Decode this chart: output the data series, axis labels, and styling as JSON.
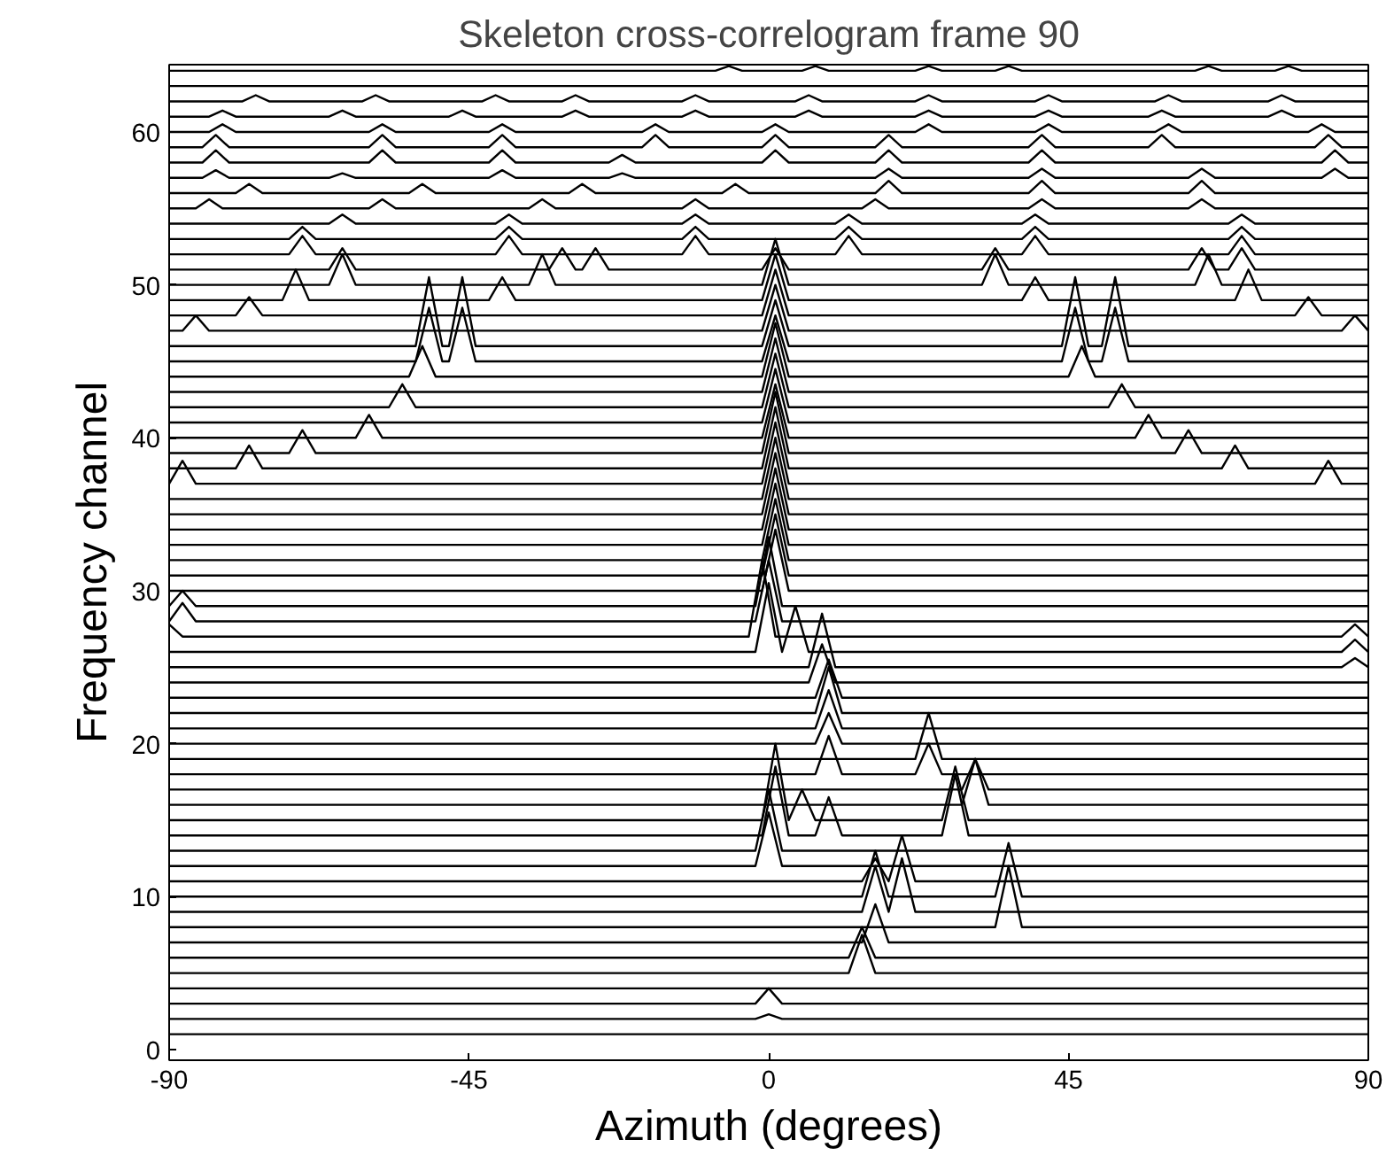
{
  "chart_data": {
    "type": "line",
    "title": "Skeleton cross-correlogram frame 90",
    "xlabel": "Azimuth (degrees)",
    "ylabel": "Frequency channel",
    "xlim": [
      -90,
      90
    ],
    "xticks": [
      -90,
      -45,
      0,
      45,
      90
    ],
    "ylim": [
      -0.7,
      64.4
    ],
    "yticks": [
      0,
      10,
      20,
      30,
      40,
      50,
      60
    ],
    "grid": false,
    "marker": "none",
    "line_style": "solid",
    "series": [
      {
        "color": "#000000",
        "x": [
          -90,
          90
        ],
        "values": [
          1,
          1
        ]
      },
      {
        "color": "#000000",
        "x": [
          -90,
          -2,
          0,
          2,
          90
        ],
        "values": [
          2,
          2,
          2.3,
          2,
          2
        ]
      },
      {
        "color": "#000000",
        "x": [
          -90,
          -2,
          0,
          2,
          90
        ],
        "values": [
          3,
          3,
          4,
          3,
          3
        ]
      },
      {
        "color": "#000000",
        "x": [
          -90,
          90
        ],
        "values": [
          4,
          4
        ]
      },
      {
        "color": "#000000",
        "x": [
          -90,
          12,
          14,
          16,
          90
        ],
        "values": [
          5,
          5,
          7.5,
          5,
          5
        ]
      },
      {
        "color": "#000000",
        "x": [
          -90,
          12,
          14,
          16,
          90
        ],
        "values": [
          6,
          6,
          8,
          6,
          6
        ]
      },
      {
        "color": "#000000",
        "x": [
          -90,
          14,
          16,
          18,
          90
        ],
        "values": [
          7,
          7,
          9.5,
          7,
          7
        ]
      },
      {
        "color": "#000000",
        "x": [
          -90,
          34,
          36,
          38,
          90
        ],
        "values": [
          8,
          8,
          12,
          8,
          8
        ]
      },
      {
        "color": "#000000",
        "x": [
          -90,
          14,
          16,
          18,
          20,
          22,
          90
        ],
        "values": [
          9,
          9,
          12,
          9,
          12.5,
          9,
          9
        ]
      },
      {
        "color": "#000000",
        "x": [
          -90,
          14,
          16,
          18,
          34,
          36,
          38,
          90
        ],
        "values": [
          10,
          10,
          13,
          10,
          10,
          13.5,
          10,
          10
        ]
      },
      {
        "color": "#000000",
        "x": [
          -90,
          14,
          16,
          18,
          20,
          22,
          90
        ],
        "values": [
          11,
          11,
          12.5,
          11,
          14,
          11,
          11
        ]
      },
      {
        "color": "#000000",
        "x": [
          -90,
          -2,
          0,
          2,
          90
        ],
        "values": [
          12,
          12,
          15.5,
          12,
          12
        ]
      },
      {
        "color": "#000000",
        "x": [
          -90,
          -2,
          0,
          2,
          90
        ],
        "values": [
          13,
          13,
          17,
          13,
          13
        ]
      },
      {
        "color": "#000000",
        "x": [
          -90,
          -1,
          1,
          3,
          7,
          9,
          11,
          26,
          28,
          30,
          90
        ],
        "values": [
          14,
          14,
          18.5,
          14,
          14,
          16.5,
          14,
          14,
          18,
          14,
          14
        ]
      },
      {
        "color": "#000000",
        "x": [
          -90,
          -1,
          1,
          3,
          5,
          7,
          26,
          28,
          30,
          90
        ],
        "values": [
          15,
          15,
          20,
          15,
          17,
          15,
          15,
          18.5,
          15,
          15
        ]
      },
      {
        "color": "#000000",
        "x": [
          -90,
          29,
          31,
          33,
          90
        ],
        "values": [
          16,
          16,
          19,
          16,
          16
        ]
      },
      {
        "color": "#000000",
        "x": [
          -90,
          29,
          31,
          33,
          90
        ],
        "values": [
          17,
          17,
          19,
          17,
          17
        ]
      },
      {
        "color": "#000000",
        "x": [
          -90,
          7,
          9,
          11,
          22,
          24,
          26,
          90
        ],
        "values": [
          18,
          18,
          20.5,
          18,
          18,
          20,
          18,
          18
        ]
      },
      {
        "color": "#000000",
        "x": [
          -90,
          22,
          24,
          26,
          90
        ],
        "values": [
          19,
          19,
          22,
          19,
          19
        ]
      },
      {
        "color": "#000000",
        "x": [
          -90,
          7,
          9,
          11,
          90
        ],
        "values": [
          20,
          20,
          22,
          20,
          20
        ]
      },
      {
        "color": "#000000",
        "x": [
          -90,
          7,
          9,
          11,
          90
        ],
        "values": [
          21,
          21,
          23.5,
          21,
          21
        ]
      },
      {
        "color": "#000000",
        "x": [
          -90,
          7,
          9,
          11,
          90
        ],
        "values": [
          22,
          22,
          25,
          22,
          22
        ]
      },
      {
        "color": "#000000",
        "x": [
          -90,
          7,
          9,
          11,
          90
        ],
        "values": [
          23,
          23,
          25.5,
          23,
          23
        ]
      },
      {
        "color": "#000000",
        "x": [
          -90,
          6,
          8,
          10,
          90
        ],
        "values": [
          24,
          24,
          26.5,
          24,
          24
        ]
      },
      {
        "color": "#000000",
        "x": [
          -90,
          6,
          8,
          10,
          86,
          88,
          90
        ],
        "values": [
          25,
          25,
          28.5,
          25,
          25,
          25.6,
          25
        ]
      },
      {
        "color": "#000000",
        "x": [
          -90,
          -2,
          0,
          2,
          4,
          6,
          86,
          88,
          90
        ],
        "values": [
          26,
          26,
          30.5,
          26,
          29,
          26,
          26,
          26.8,
          26
        ]
      },
      {
        "color": "#000000",
        "x": [
          -90,
          -88,
          -86,
          -3,
          -1,
          1,
          86,
          88,
          90
        ],
        "values": [
          27.8,
          27,
          27,
          27,
          32,
          27,
          27,
          27.8,
          27
        ]
      },
      {
        "color": "#000000",
        "x": [
          -90,
          -88,
          -86,
          -2,
          0,
          2,
          90
        ],
        "values": [
          28,
          29.2,
          28,
          28,
          32,
          28,
          28
        ]
      },
      {
        "color": "#000000",
        "x": [
          -90,
          -88,
          -86,
          -2,
          0,
          2,
          90
        ],
        "values": [
          29,
          30,
          29,
          29,
          33.5,
          29,
          29
        ]
      },
      {
        "color": "#000000",
        "x": [
          -90,
          -1,
          1,
          3,
          90
        ],
        "values": [
          30,
          30,
          34,
          30,
          30
        ]
      },
      {
        "color": "#000000",
        "x": [
          -90,
          -1,
          1,
          3,
          90
        ],
        "values": [
          31,
          31,
          35,
          31,
          31
        ]
      },
      {
        "color": "#000000",
        "x": [
          -90,
          -1,
          1,
          3,
          90
        ],
        "values": [
          32,
          32,
          36,
          32,
          32
        ]
      },
      {
        "color": "#000000",
        "x": [
          -90,
          -1,
          1,
          3,
          90
        ],
        "values": [
          33,
          33,
          37,
          33,
          33
        ]
      },
      {
        "color": "#000000",
        "x": [
          -90,
          -1,
          1,
          3,
          90
        ],
        "values": [
          34,
          34,
          38,
          34,
          34
        ]
      },
      {
        "color": "#000000",
        "x": [
          -90,
          -1,
          1,
          3,
          90
        ],
        "values": [
          35,
          35,
          39,
          35,
          35
        ]
      },
      {
        "color": "#000000",
        "x": [
          -90,
          -1,
          1,
          3,
          90
        ],
        "values": [
          36,
          36,
          40,
          36,
          36
        ]
      },
      {
        "color": "#000000",
        "x": [
          -90,
          -88,
          -86,
          -1,
          1,
          3,
          82,
          84,
          86,
          90
        ],
        "values": [
          37,
          38.5,
          37,
          37,
          41,
          37,
          37,
          38.5,
          37,
          37
        ]
      },
      {
        "color": "#000000",
        "x": [
          -90,
          -80,
          -78,
          -76,
          -1,
          1,
          3,
          68,
          70,
          72,
          90
        ],
        "values": [
          38,
          38,
          39.5,
          38,
          38,
          42,
          38,
          38,
          39.5,
          38,
          38
        ]
      },
      {
        "color": "#000000",
        "x": [
          -90,
          -72,
          -70,
          -68,
          -1,
          1,
          3,
          61,
          63,
          65,
          90
        ],
        "values": [
          39,
          39,
          40.5,
          39,
          39,
          43,
          39,
          39,
          40.5,
          39,
          39
        ]
      },
      {
        "color": "#000000",
        "x": [
          -90,
          -62,
          -60,
          -58,
          -1,
          1,
          3,
          55,
          57,
          59,
          90
        ],
        "values": [
          40,
          40,
          41.5,
          40,
          40,
          43.5,
          40,
          40,
          41.5,
          40,
          40
        ]
      },
      {
        "color": "#000000",
        "x": [
          -90,
          -1,
          1,
          3,
          90
        ],
        "values": [
          41,
          41,
          44.5,
          41,
          41
        ]
      },
      {
        "color": "#000000",
        "x": [
          -90,
          -57,
          -55,
          -53,
          -1,
          1,
          3,
          51,
          53,
          55,
          90
        ],
        "values": [
          42,
          42,
          43.5,
          42,
          42,
          45.5,
          42,
          42,
          43.5,
          42,
          42
        ]
      },
      {
        "color": "#000000",
        "x": [
          -90,
          -1,
          1,
          3,
          90
        ],
        "values": [
          43,
          43,
          46.5,
          43,
          43
        ]
      },
      {
        "color": "#000000",
        "x": [
          -90,
          -54,
          -52,
          -50,
          -1,
          1,
          3,
          45,
          47,
          49,
          90
        ],
        "values": [
          44,
          44,
          46,
          44,
          44,
          47.5,
          44,
          44,
          46,
          44,
          44
        ]
      },
      {
        "color": "#000000",
        "x": [
          -90,
          -53,
          -51,
          -49,
          -48,
          -46,
          -44,
          -1,
          1,
          3,
          44,
          46,
          48,
          50,
          52,
          54,
          90
        ],
        "values": [
          45,
          45,
          48.5,
          45,
          45,
          48.5,
          45,
          45,
          48,
          45,
          45,
          48.5,
          45,
          45,
          48.5,
          45,
          45
        ]
      },
      {
        "color": "#000000",
        "x": [
          -90,
          -53,
          -51,
          -49,
          -48,
          -46,
          -44,
          -1,
          1,
          3,
          44,
          46,
          48,
          50,
          52,
          54,
          90
        ],
        "values": [
          46,
          46,
          50.5,
          46,
          46,
          50.5,
          46,
          46,
          49,
          46,
          46,
          50.5,
          46,
          46,
          50.5,
          46,
          46
        ]
      },
      {
        "color": "#000000",
        "x": [
          -90,
          -88,
          -86,
          -84,
          -1,
          1,
          3,
          86,
          88,
          90
        ],
        "values": [
          47,
          47,
          48,
          47,
          47,
          50,
          47,
          47,
          48,
          47
        ]
      },
      {
        "color": "#000000",
        "x": [
          -90,
          -80,
          -78,
          -76,
          -1,
          1,
          3,
          79,
          81,
          83,
          90
        ],
        "values": [
          48,
          48,
          49.2,
          48,
          48,
          51,
          48,
          48,
          49.2,
          48,
          48
        ]
      },
      {
        "color": "#000000",
        "x": [
          -90,
          -73,
          -71,
          -69,
          -42,
          -40,
          -38,
          -1,
          1,
          3,
          38,
          40,
          42,
          70,
          72,
          74,
          90
        ],
        "values": [
          49,
          49,
          51,
          49,
          49,
          50.5,
          49,
          49,
          52,
          49,
          49,
          50.5,
          49,
          49,
          51,
          49,
          49
        ]
      },
      {
        "color": "#000000",
        "x": [
          -90,
          -66,
          -64,
          -62,
          -36,
          -34,
          -32,
          -1,
          1,
          3,
          32,
          34,
          36,
          64,
          66,
          68,
          90
        ],
        "values": [
          50,
          50,
          52,
          50,
          50,
          52,
          50,
          50,
          53,
          50,
          50,
          52,
          50,
          50,
          52,
          50,
          50
        ]
      },
      {
        "color": "#000000",
        "x": [
          -90,
          -66,
          -64,
          -62,
          -33,
          -31,
          -29,
          -28,
          -26,
          -24,
          -1,
          1,
          3,
          32,
          34,
          36,
          63,
          65,
          67,
          69,
          71,
          73,
          90
        ],
        "values": [
          51,
          51,
          52.4,
          51,
          51,
          52.4,
          51,
          51,
          52.4,
          51,
          51,
          52.4,
          51,
          51,
          52.4,
          51,
          51,
          52.4,
          51,
          51,
          52.4,
          51,
          51
        ]
      },
      {
        "color": "#000000",
        "x": [
          -90,
          -72,
          -70,
          -68,
          -41,
          -39,
          -37,
          -13,
          -11,
          -9,
          10,
          12,
          14,
          38,
          40,
          42,
          69,
          71,
          73,
          90
        ],
        "values": [
          52,
          52,
          53.2,
          52,
          52,
          53.2,
          52,
          52,
          53.2,
          52,
          52,
          53.2,
          52,
          52,
          53.2,
          52,
          52,
          53.2,
          52,
          52
        ]
      },
      {
        "color": "#000000",
        "x": [
          -90,
          -72,
          -70,
          -68,
          -41,
          -39,
          -37,
          -13,
          -11,
          -9,
          10,
          12,
          14,
          38,
          40,
          42,
          69,
          71,
          73,
          90
        ],
        "values": [
          53,
          53,
          53.8,
          53,
          53,
          53.8,
          53,
          53,
          53.8,
          53,
          53,
          53.8,
          53,
          53,
          53.8,
          53,
          53,
          53.8,
          53,
          53
        ]
      },
      {
        "color": "#000000",
        "x": [
          -90,
          -66,
          -64,
          -62,
          -41,
          -39,
          -37,
          -13,
          -11,
          -9,
          10,
          12,
          14,
          38,
          40,
          42,
          69,
          71,
          73,
          90
        ],
        "values": [
          54,
          54,
          54.6,
          54,
          54,
          54.6,
          54,
          54,
          54.6,
          54,
          54,
          54.6,
          54,
          54,
          54.6,
          54,
          54,
          54.6,
          54,
          54
        ]
      },
      {
        "color": "#000000",
        "x": [
          -90,
          -86,
          -84,
          -82,
          -60,
          -58,
          -56,
          -36,
          -34,
          -32,
          -13,
          -11,
          -9,
          14,
          16,
          18,
          39,
          41,
          43,
          63,
          65,
          67,
          90
        ],
        "values": [
          55,
          55,
          55.6,
          55,
          55,
          55.6,
          55,
          55,
          55.6,
          55,
          55,
          55.6,
          55,
          55,
          55.6,
          55,
          55,
          55.6,
          55,
          55,
          55.6,
          55,
          55
        ]
      },
      {
        "color": "#000000",
        "x": [
          -90,
          -80,
          -78,
          -76,
          -54,
          -52,
          -50,
          -30,
          -28,
          -26,
          -7,
          -5,
          -3,
          16,
          18,
          20,
          39,
          41,
          43,
          63,
          65,
          67,
          90
        ],
        "values": [
          56,
          56,
          56.6,
          56,
          56,
          56.6,
          56,
          56,
          56.6,
          56,
          56,
          56.6,
          56,
          56,
          56.8,
          56,
          56,
          56.8,
          56,
          56,
          56.8,
          56,
          56
        ]
      },
      {
        "color": "#000000",
        "x": [
          -90,
          -85,
          -83,
          -81,
          -66,
          -64,
          -62,
          -42,
          -40,
          -38,
          -24,
          -22,
          -20,
          16,
          18,
          20,
          39,
          41,
          43,
          63,
          65,
          67,
          83,
          85,
          87,
          90
        ],
        "values": [
          57,
          57,
          57.5,
          57,
          57,
          57.3,
          57,
          57,
          57.5,
          57,
          57,
          57.3,
          57,
          57,
          57.6,
          57,
          57,
          57.6,
          57,
          57,
          57.6,
          57,
          57,
          57.6,
          57,
          57
        ]
      },
      {
        "color": "#000000",
        "x": [
          -90,
          -85,
          -83,
          -81,
          -60,
          -58,
          -56,
          -42,
          -40,
          -38,
          -24,
          -22,
          -20,
          -1,
          1,
          3,
          16,
          18,
          20,
          39,
          41,
          43,
          83,
          85,
          87,
          90
        ],
        "values": [
          58,
          58,
          58.8,
          58,
          58,
          58.8,
          58,
          58,
          58.8,
          58,
          58,
          58.5,
          58,
          58,
          58.8,
          58,
          58,
          58.8,
          58,
          58,
          58.8,
          58,
          58,
          58.8,
          58,
          58
        ]
      },
      {
        "color": "#000000",
        "x": [
          -90,
          -85,
          -83,
          -81,
          -60,
          -58,
          -56,
          -42,
          -40,
          -38,
          -19,
          -17,
          -15,
          -1,
          1,
          3,
          16,
          18,
          20,
          39,
          41,
          43,
          57,
          59,
          61,
          82,
          84,
          86,
          90
        ],
        "values": [
          59,
          59,
          59.8,
          59,
          59,
          59.8,
          59,
          59,
          59.8,
          59,
          59,
          59.8,
          59,
          59,
          59.8,
          59,
          59,
          59.8,
          59,
          59,
          59.8,
          59,
          59,
          59.8,
          59,
          59,
          59.8,
          59,
          59
        ]
      },
      {
        "color": "#000000",
        "x": [
          -90,
          -84,
          -82,
          -80,
          -60,
          -58,
          -56,
          -42,
          -40,
          -38,
          -19,
          -17,
          -15,
          -1,
          1,
          3,
          22,
          24,
          26,
          40,
          42,
          44,
          58,
          60,
          62,
          81,
          83,
          85,
          90
        ],
        "values": [
          60,
          60,
          60.5,
          60,
          60,
          60.5,
          60,
          60,
          60.5,
          60,
          60,
          60.5,
          60,
          60,
          60.5,
          60,
          60,
          60.5,
          60,
          60,
          60.5,
          60,
          60,
          60.5,
          60,
          60,
          60.5,
          60,
          60
        ]
      },
      {
        "color": "#000000",
        "x": [
          -90,
          -84,
          -82,
          -80,
          -66,
          -64,
          -62,
          -48,
          -46,
          -44,
          -31,
          -29,
          -27,
          -13,
          -11,
          -9,
          4,
          6,
          8,
          22,
          24,
          26,
          40,
          42,
          44,
          57,
          59,
          61,
          75,
          77,
          79,
          90
        ],
        "values": [
          61,
          61,
          61.4,
          61,
          61,
          61.4,
          61,
          61,
          61.4,
          61,
          61,
          61.4,
          61,
          61,
          61.4,
          61,
          61,
          61.4,
          61,
          61,
          61.4,
          61,
          61,
          61.4,
          61,
          61,
          61.4,
          61,
          61,
          61.4,
          61,
          61
        ]
      },
      {
        "color": "#000000",
        "x": [
          -90,
          -79,
          -77,
          -75,
          -61,
          -59,
          -57,
          -43,
          -41,
          -39,
          -31,
          -29,
          -27,
          -13,
          -11,
          -9,
          4,
          6,
          8,
          22,
          24,
          26,
          40,
          42,
          44,
          58,
          60,
          62,
          75,
          77,
          79,
          90
        ],
        "values": [
          62,
          62,
          62.4,
          62,
          62,
          62.4,
          62,
          62,
          62.4,
          62,
          62,
          62.4,
          62,
          62,
          62.4,
          62,
          62,
          62.4,
          62,
          62,
          62.4,
          62,
          62,
          62.4,
          62,
          62,
          62.4,
          62,
          62,
          62.4,
          62,
          62
        ]
      },
      {
        "color": "#000000",
        "x": [
          -90,
          90
        ],
        "values": [
          63,
          63
        ]
      },
      {
        "color": "#000000",
        "x": [
          -90,
          -8,
          -6,
          -4,
          5,
          7,
          9,
          22,
          24,
          26,
          34,
          36,
          38,
          64,
          66,
          68,
          76,
          78,
          80,
          90
        ],
        "values": [
          64,
          64,
          64.3,
          64,
          64,
          64.3,
          64,
          64,
          64.3,
          64,
          64,
          64.3,
          64,
          64,
          64.3,
          64,
          64,
          64.3,
          64,
          64
        ]
      }
    ]
  }
}
